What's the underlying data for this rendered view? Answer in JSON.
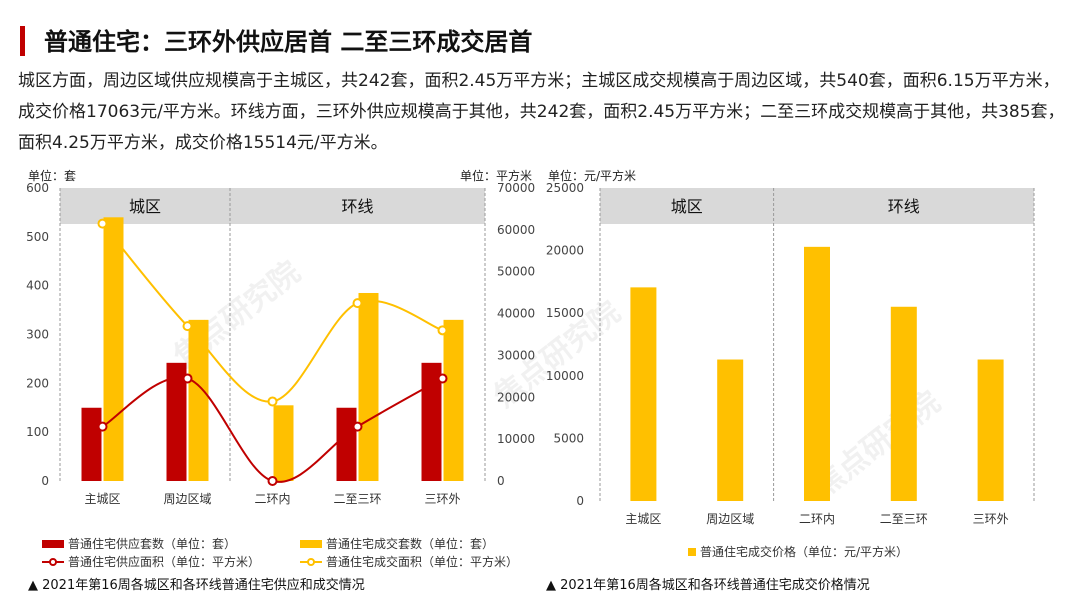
{
  "header": {
    "title": "普通住宅：三环外供应居首 二至三环成交居首",
    "summary": "城区方面，周边区域供应规模高于主城区，共242套，面积2.45万平方米；主城区成交规模高于周边区域，共540套，面积6.15万平方米，成交价格17063元/平方米。环线方面，三环外供应规模高于其他，共242套，面积2.45万平方米；二至三环成交规模高于其他，共385套，面积4.25万平方米，成交价格15514元/平方米。"
  },
  "watermark": "焦点研究院",
  "colors": {
    "red": "#c00000",
    "yellow": "#ffc000",
    "band": "#d9d9d9",
    "grid": "#d9d9d9"
  },
  "chart_data": [
    {
      "type": "bar",
      "categories": [
        "主城区",
        "周边区域",
        "二环内",
        "二至三环",
        "三环外"
      ],
      "group_headers": [
        {
          "label": "城区",
          "span": [
            0,
            1
          ]
        },
        {
          "label": "环线",
          "span": [
            2,
            4
          ]
        }
      ],
      "y_left": {
        "label": "单位：套",
        "ylim": [
          0,
          600
        ],
        "ticks": [
          0,
          100,
          200,
          300,
          400,
          500,
          600
        ]
      },
      "y_right": {
        "label": "单位：平方米",
        "ylim": [
          0,
          70000
        ],
        "ticks": [
          0,
          10000,
          20000,
          30000,
          40000,
          50000,
          60000,
          70000
        ]
      },
      "series": [
        {
          "name": "普通住宅供应套数（单位：套）",
          "kind": "bar",
          "axis": "left",
          "color": "#c00000",
          "values": [
            150,
            242,
            0,
            150,
            242
          ]
        },
        {
          "name": "普通住宅成交套数（单位：套）",
          "kind": "bar",
          "axis": "left",
          "color": "#ffc000",
          "values": [
            540,
            330,
            155,
            385,
            330
          ]
        },
        {
          "name": "普通住宅供应面积（单位：平方米）",
          "kind": "line",
          "axis": "right",
          "color": "#c00000",
          "values": [
            13000,
            24500,
            0,
            13000,
            24500
          ]
        },
        {
          "name": "普通住宅成交面积（单位：平方米）",
          "kind": "line",
          "axis": "right",
          "color": "#ffc000",
          "values": [
            61500,
            37000,
            19000,
            42500,
            36000
          ]
        }
      ],
      "caption": "▲ 2021年第16周各城区和各环线普通住宅供应和成交情况"
    },
    {
      "type": "bar",
      "categories": [
        "主城区",
        "周边区域",
        "二环内",
        "二至三环",
        "三环外"
      ],
      "group_headers": [
        {
          "label": "城区",
          "span": [
            0,
            1
          ]
        },
        {
          "label": "环线",
          "span": [
            2,
            4
          ]
        }
      ],
      "y_left": {
        "label": "单位：元/平方米",
        "ylim": [
          0,
          25000
        ],
        "ticks": [
          0,
          5000,
          10000,
          15000,
          20000,
          25000
        ]
      },
      "series": [
        {
          "name": "普通住宅成交价格（单位：元/平方米）",
          "kind": "bar",
          "axis": "left",
          "color": "#ffc000",
          "values": [
            17063,
            11300,
            20300,
            15514,
            11300
          ]
        }
      ],
      "caption": "▲ 2021年第16周各城区和各环线普通住宅成交价格情况"
    }
  ]
}
